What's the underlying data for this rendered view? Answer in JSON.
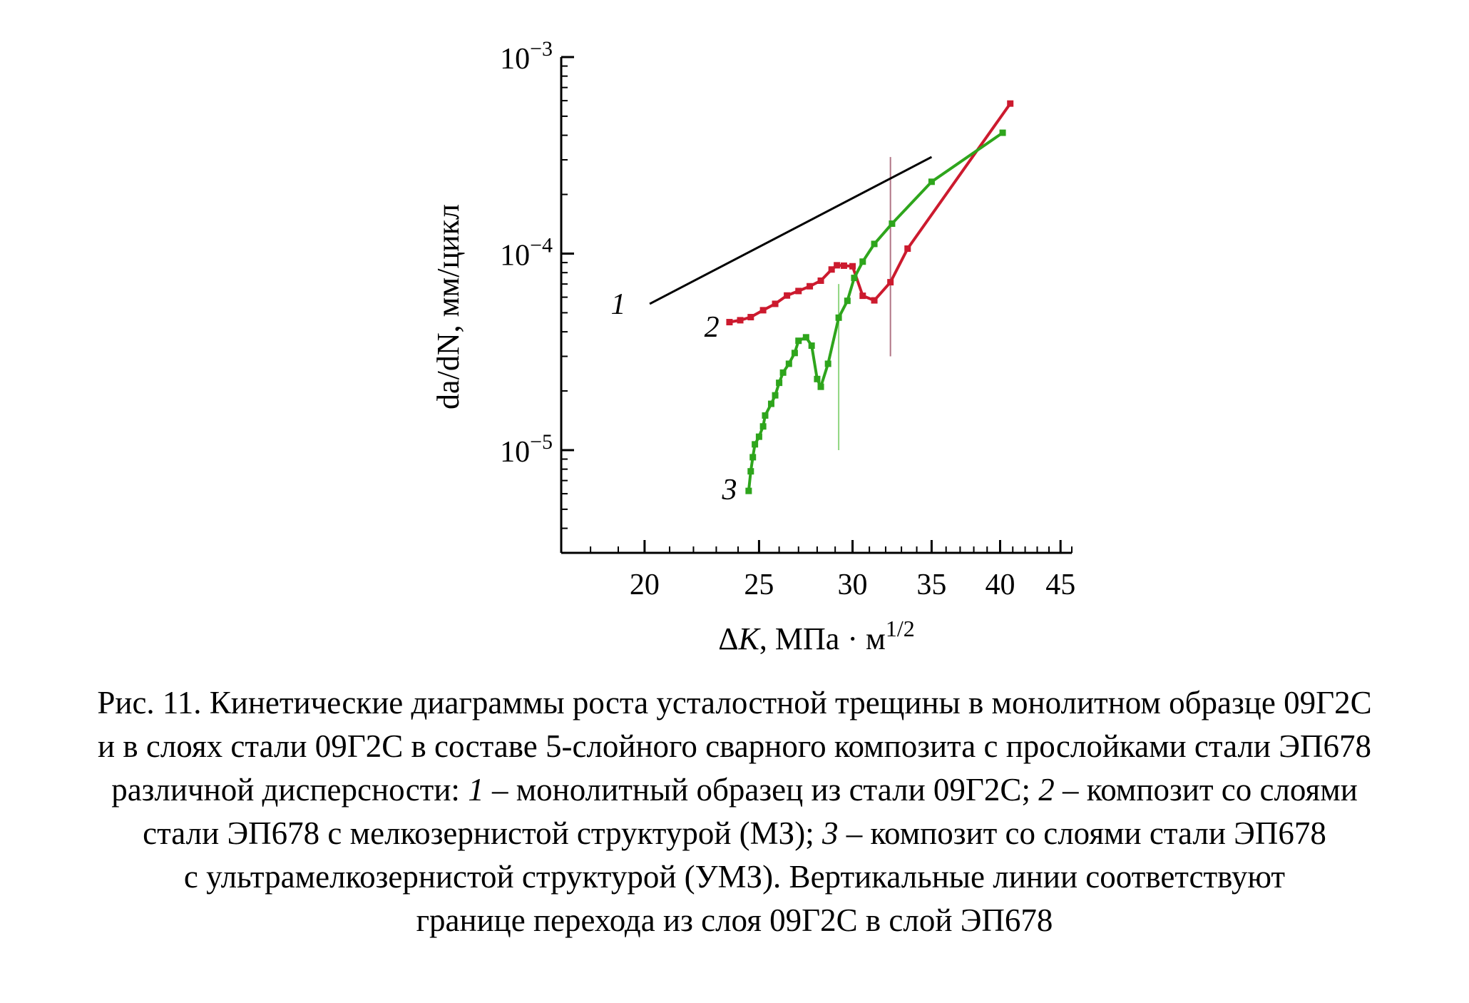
{
  "chart_data": {
    "type": "line",
    "xscale": "log",
    "yscale": "log",
    "xlim": [
      17,
      46
    ],
    "ylim": [
      3e-06,
      0.001
    ],
    "xticks": [
      20,
      25,
      30,
      35,
      40,
      45
    ],
    "yticks": [
      {
        "value": 1e-05,
        "base": "10",
        "exp": "−5"
      },
      {
        "value": 0.0001,
        "base": "10",
        "exp": "−4"
      },
      {
        "value": 0.001,
        "base": "10",
        "exp": "−3"
      }
    ],
    "xlabel": {
      "delta": "Δ",
      "k": "K",
      "rest": ", МПа",
      "dot": "·",
      "unit": "м",
      "exp": "1/2"
    },
    "ylabel": "da/dN, мм/цикл",
    "colors": {
      "s1": "#000000",
      "s2": "#cc1a2e",
      "s3": "#2ea51c",
      "vline2": "#b07585",
      "vline3": "#8fd67f"
    },
    "vlines": [
      {
        "series": "3",
        "x": 29.2,
        "y": [
          1e-05,
          7e-05
        ]
      },
      {
        "series": "2",
        "x": 32.3,
        "y": [
          3e-05,
          0.00031
        ]
      }
    ],
    "series": [
      {
        "name": "1",
        "markers": false,
        "points": [
          [
            20.2,
            5.55e-05
          ],
          [
            35.0,
            0.00031
          ]
        ]
      },
      {
        "name": "2",
        "markers": true,
        "points": [
          [
            23.6,
            4.48e-05
          ],
          [
            24.1,
            4.58e-05
          ],
          [
            24.6,
            4.75e-05
          ],
          [
            25.2,
            5.15e-05
          ],
          [
            25.8,
            5.55e-05
          ],
          [
            26.4,
            6.12e-05
          ],
          [
            27.0,
            6.45e-05
          ],
          [
            27.6,
            6.82e-05
          ],
          [
            28.2,
            7.28e-05
          ],
          [
            28.8,
            8.3e-05
          ],
          [
            29.1,
            8.72e-05
          ],
          [
            29.5,
            8.68e-05
          ],
          [
            30.0,
            8.62e-05
          ],
          [
            30.6,
            6.1e-05
          ],
          [
            31.3,
            5.78e-05
          ],
          [
            32.3,
            7.15e-05
          ],
          [
            33.4,
            0.000106
          ],
          [
            40.8,
            0.00058
          ]
        ]
      },
      {
        "name": "3",
        "markers": true,
        "points": [
          [
            24.5,
            6.2e-06
          ],
          [
            24.6,
            7.8e-06
          ],
          [
            24.7,
            9.2e-06
          ],
          [
            24.8,
            1.07e-05
          ],
          [
            25.0,
            1.17e-05
          ],
          [
            25.2,
            1.32e-05
          ],
          [
            25.3,
            1.5e-05
          ],
          [
            25.6,
            1.72e-05
          ],
          [
            25.8,
            1.9e-05
          ],
          [
            26.0,
            2.2e-05
          ],
          [
            26.2,
            2.48e-05
          ],
          [
            26.5,
            2.75e-05
          ],
          [
            26.8,
            3.12e-05
          ],
          [
            27.0,
            3.6e-05
          ],
          [
            27.4,
            3.75e-05
          ],
          [
            27.7,
            3.4e-05
          ],
          [
            28.0,
            2.3e-05
          ],
          [
            28.2,
            2.1e-05
          ],
          [
            28.6,
            2.75e-05
          ],
          [
            29.2,
            4.72e-05
          ],
          [
            29.7,
            5.75e-05
          ],
          [
            30.1,
            7.52e-05
          ],
          [
            30.6,
            9.1e-05
          ],
          [
            31.3,
            0.000112
          ],
          [
            32.4,
            0.000142
          ],
          [
            35.0,
            0.000232
          ],
          [
            40.2,
            0.000412
          ]
        ]
      }
    ],
    "curve_labels": [
      {
        "text": "1",
        "x": 19.0,
        "y": 5.55e-05
      },
      {
        "text": "2",
        "x": 22.8,
        "y": 4.25e-05
      },
      {
        "text": "3",
        "x": 23.6,
        "y": 6.3e-06
      }
    ]
  },
  "caption": {
    "lines": [
      [
        {
          "t": "Рис. 11. Кинетические диаграммы роста усталостной трещины в монолитном образце 09Г2С",
          "i": false
        }
      ],
      [
        {
          "t": "и в слоях стали 09Г2С в составе 5-слойного сварного композита с прослойками стали ЭП678",
          "i": false
        }
      ],
      [
        {
          "t": "различной дисперсности: ",
          "i": false
        },
        {
          "t": "1",
          "i": true
        },
        {
          "t": " – монолитный образец из стали 09Г2С; ",
          "i": false
        },
        {
          "t": "2",
          "i": true
        },
        {
          "t": " – композит со слоями",
          "i": false
        }
      ],
      [
        {
          "t": "стали ЭП678 с мелкозернистой структурой (МЗ); ",
          "i": false
        },
        {
          "t": "3",
          "i": true
        },
        {
          "t": " – композит со слоями стали ЭП678",
          "i": false
        }
      ],
      [
        {
          "t": "с ультрамелкозернистой структурой (УМЗ). Вертикальные линии соответствуют",
          "i": false
        }
      ],
      [
        {
          "t": "границе перехода из слоя 09Г2С в слой ЭП678",
          "i": false
        }
      ]
    ]
  }
}
